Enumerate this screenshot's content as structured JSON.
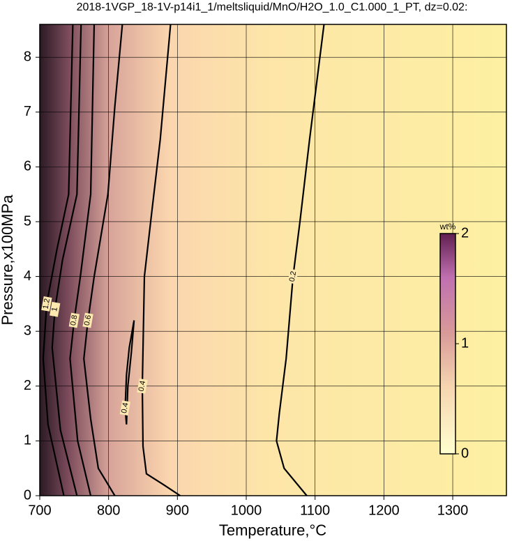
{
  "chart_data": {
    "type": "contour",
    "title": "2018-1VGP_18-1V-p14i1_1/meltsliquid/MnO/H2O_1.0_C1.000_1_PT, dz=0.02:",
    "x_label": "Temperature,°C",
    "y_label": "Pressure,x100MPa",
    "xlim": [
      700,
      1378
    ],
    "xticks": [
      700,
      800,
      900,
      1000,
      1100,
      1200,
      1300
    ],
    "ylim": [
      0,
      8.6
    ],
    "yticks": [
      0,
      1,
      2,
      3,
      4,
      5,
      6,
      7,
      8
    ],
    "grid": true,
    "line_color": "#000000",
    "contours": [
      {
        "level": 0.2,
        "x": [
          1088,
          1055,
          1044,
          1048,
          1058,
          1068,
          1078,
          1092,
          1105,
          1113
        ],
        "y": [
          0,
          0.5,
          1,
          1.5,
          2.5,
          4,
          5,
          6.5,
          7.8,
          8.6
        ]
      },
      {
        "level": 0.4,
        "x": [
          904,
          880,
          855,
          850,
          849,
          852,
          863,
          875,
          890
        ],
        "y": [
          0,
          0.2,
          0.4,
          0.9,
          2,
          4,
          5.2,
          6.5,
          8.6
        ]
      },
      {
        "level": 0.4,
        "x": [
          837,
          833,
          828,
          826,
          824,
          826,
          830,
          837
        ],
        "y": [
          3.2,
          2.6,
          2,
          1.3,
          1.6,
          2.2,
          2.7,
          3.2
        ]
      },
      {
        "level": 0.6,
        "x": [
          809,
          785,
          774,
          764,
          770,
          779,
          799,
          809,
          820
        ],
        "y": [
          0,
          0.5,
          1.4,
          2.5,
          3.2,
          4,
          5.5,
          7.1,
          8.6
        ]
      },
      {
        "level": 0.8,
        "x": [
          774,
          755,
          744,
          750,
          759,
          774,
          779
        ],
        "y": [
          0,
          1,
          2.5,
          3.2,
          4,
          5.5,
          8.6
        ]
      },
      {
        "level": 1,
        "x": [
          754,
          730,
          718,
          722,
          733,
          754,
          760
        ],
        "y": [
          0,
          1.2,
          2.7,
          3.4,
          4.3,
          5.5,
          8.6
        ]
      },
      {
        "level": 1.2,
        "x": [
          735,
          712,
          705,
          710,
          725,
          742,
          748
        ],
        "y": [
          0,
          1.3,
          2.5,
          3.5,
          4.5,
          5.5,
          8.6
        ]
      }
    ],
    "colorbar": {
      "label": "wt%",
      "lim": [
        0,
        2
      ],
      "ticks": [
        0,
        1,
        2
      ]
    }
  }
}
